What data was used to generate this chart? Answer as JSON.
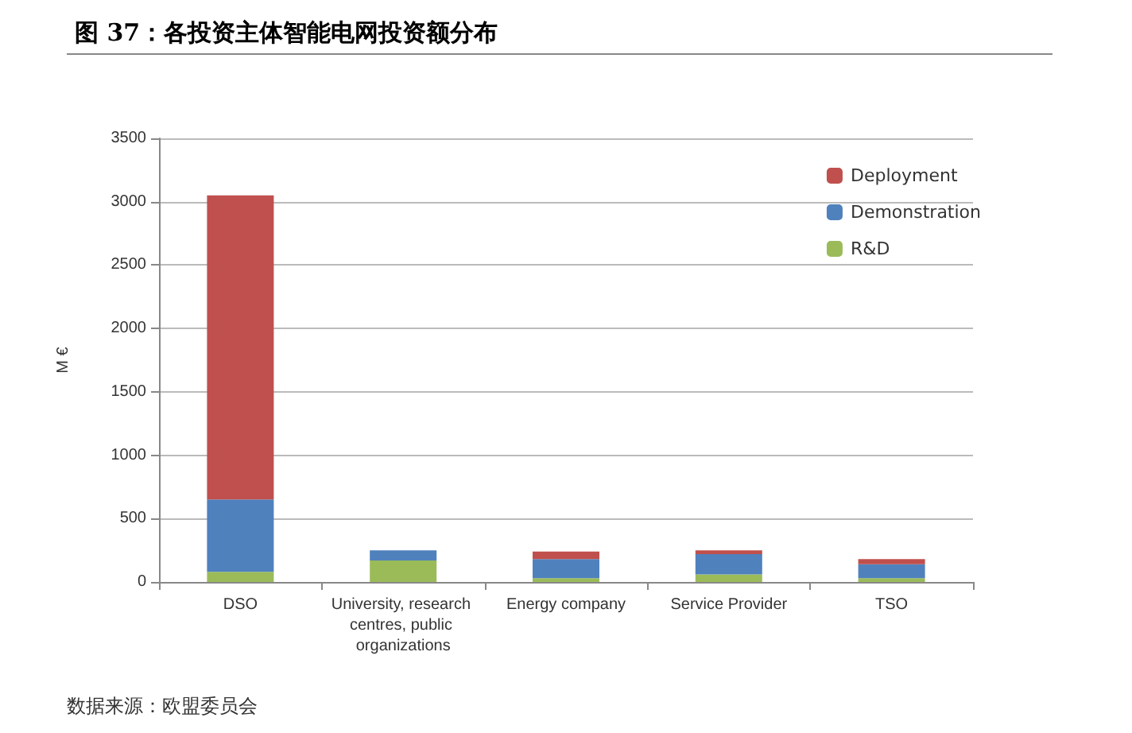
{
  "chart_data": {
    "type": "bar",
    "title": "图 37：各投资主体智能电网投资额分布",
    "ylabel": "M €",
    "annotations": [
      "数据来源：欧盟委员会"
    ],
    "categories": [
      "DSO",
      "University, research centres, public organizations",
      "Energy company",
      "Service Provider",
      "TSO"
    ],
    "stacked": true,
    "series": [
      {
        "name": "R&D",
        "color": "#9bbb59",
        "values": [
          80,
          170,
          30,
          60,
          30
        ]
      },
      {
        "name": "Demonstration",
        "color": "#4f81bd",
        "values": [
          570,
          80,
          150,
          160,
          110
        ]
      },
      {
        "name": "Deployment",
        "color": "#c0504d",
        "values": [
          2400,
          null,
          60,
          30,
          40
        ]
      }
    ],
    "ylim": [
      0,
      3500
    ],
    "yticks": [
      0,
      500,
      1000,
      1500,
      2000,
      2500,
      3000,
      3500
    ],
    "grid": "y",
    "legend": "top right"
  }
}
